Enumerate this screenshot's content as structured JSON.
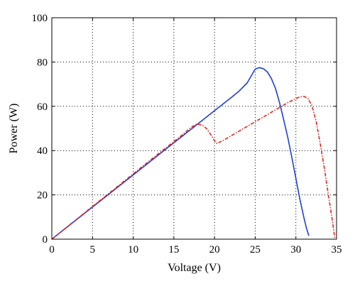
{
  "chart_data": {
    "type": "line",
    "title": "",
    "xlabel": "Voltage (V)",
    "ylabel": "Power (W)",
    "xlim": [
      0,
      35
    ],
    "ylim": [
      0,
      100
    ],
    "xticks": [
      0,
      5,
      10,
      15,
      20,
      25,
      30,
      35
    ],
    "yticks": [
      0,
      20,
      40,
      60,
      80,
      100
    ],
    "xtick_labels": [
      "0",
      "5",
      "10",
      "15",
      "20",
      "25",
      "30",
      "35"
    ],
    "ytick_labels": [
      "0",
      "20",
      "40",
      "60",
      "80",
      "100"
    ],
    "grid": true,
    "legend": "none",
    "series": [
      {
        "color": "#1f3fd6",
        "style": "solid",
        "x": [
          0,
          2,
          4,
          6,
          8,
          10,
          12,
          14,
          16,
          18,
          20,
          22,
          23,
          24,
          25,
          25.5,
          26,
          26.5,
          27,
          27.5,
          28,
          28.5,
          29,
          29.5,
          30,
          30.5,
          31,
          31.3,
          31.6
        ],
        "y": [
          0,
          5.8,
          11.6,
          17.4,
          23.2,
          29,
          34.8,
          40.6,
          46.4,
          52.2,
          58,
          63.8,
          66.8,
          70.5,
          76.8,
          77.5,
          77,
          75.5,
          72.5,
          68,
          61.5,
          54,
          46,
          37,
          27.5,
          18,
          9.5,
          5,
          1.5
        ]
      },
      {
        "color": "#e0271f",
        "style": "dashed",
        "x": [
          0,
          2,
          4,
          6,
          8,
          10,
          12,
          14,
          16,
          17,
          17.8,
          18.5,
          19,
          19.5,
          20,
          20.3,
          21,
          22,
          24,
          26,
          28,
          29,
          30,
          30.5,
          31,
          31.5,
          32,
          32.5,
          33,
          33.5,
          34,
          34.5,
          34.8
        ],
        "y": [
          0,
          5.9,
          11.8,
          17.7,
          23.6,
          29.5,
          35.4,
          41.2,
          47,
          50.2,
          52,
          51.5,
          50,
          47.5,
          44.5,
          43.2,
          44.5,
          46.6,
          50.9,
          55.2,
          59.5,
          61.6,
          63.5,
          64.3,
          64.5,
          63.5,
          60,
          53,
          43,
          32,
          20,
          8,
          0
        ]
      }
    ]
  }
}
